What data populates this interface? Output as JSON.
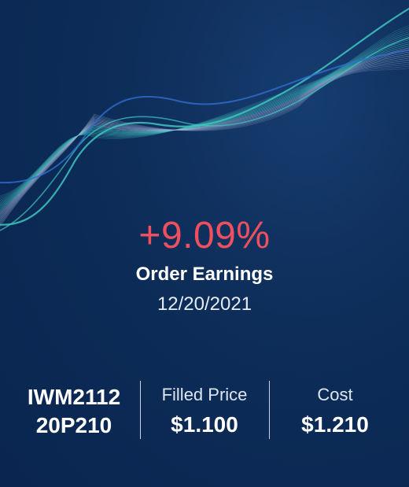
{
  "earnings": {
    "percent": "+9.09%",
    "label": "Order Earnings",
    "date": "12/20/2021"
  },
  "stats": {
    "symbol_line1": "IWM2112",
    "symbol_line2": "20P210",
    "filled_price_label": "Filled Price",
    "filled_price_value": "$1.100",
    "cost_label": "Cost",
    "cost_value": "$1.210"
  },
  "colors": {
    "background": "#0b2a55",
    "gain": "#f0505e",
    "wave_teal": "#3fc7c0",
    "wave_blue": "#2f6fd0"
  }
}
